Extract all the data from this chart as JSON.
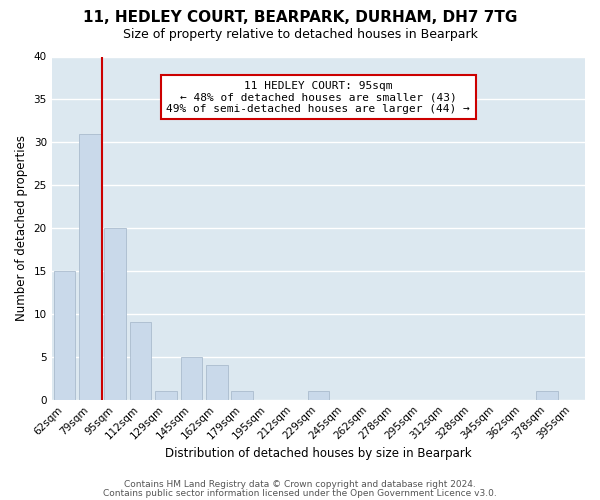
{
  "title": "11, HEDLEY COURT, BEARPARK, DURHAM, DH7 7TG",
  "subtitle": "Size of property relative to detached houses in Bearpark",
  "xlabel": "Distribution of detached houses by size in Bearpark",
  "ylabel": "Number of detached properties",
  "bin_labels": [
    "62sqm",
    "79sqm",
    "95sqm",
    "112sqm",
    "129sqm",
    "145sqm",
    "162sqm",
    "179sqm",
    "195sqm",
    "212sqm",
    "229sqm",
    "245sqm",
    "262sqm",
    "278sqm",
    "295sqm",
    "312sqm",
    "328sqm",
    "345sqm",
    "362sqm",
    "378sqm",
    "395sqm"
  ],
  "bin_counts": [
    15,
    31,
    20,
    9,
    1,
    5,
    4,
    1,
    0,
    0,
    1,
    0,
    0,
    0,
    0,
    0,
    0,
    0,
    0,
    1,
    0
  ],
  "bar_color": "#c9d9ea",
  "bar_edge_color": "#aabcce",
  "marker_line_index": 1.5,
  "marker_line_color": "#cc0000",
  "annotation_text": "11 HEDLEY COURT: 95sqm\n← 48% of detached houses are smaller (43)\n49% of semi-detached houses are larger (44) →",
  "annotation_box_facecolor": "#ffffff",
  "annotation_box_edgecolor": "#cc0000",
  "ylim": [
    0,
    40
  ],
  "yticks": [
    0,
    5,
    10,
    15,
    20,
    25,
    30,
    35,
    40
  ],
  "footer_line1": "Contains HM Land Registry data © Crown copyright and database right 2024.",
  "footer_line2": "Contains public sector information licensed under the Open Government Licence v3.0.",
  "plot_bg_color": "#dce8f0",
  "fig_bg_color": "#ffffff",
  "grid_color": "#ffffff",
  "title_fontsize": 11,
  "subtitle_fontsize": 9,
  "axis_label_fontsize": 8.5,
  "tick_fontsize": 7.5,
  "annotation_fontsize": 8,
  "footer_fontsize": 6.5
}
